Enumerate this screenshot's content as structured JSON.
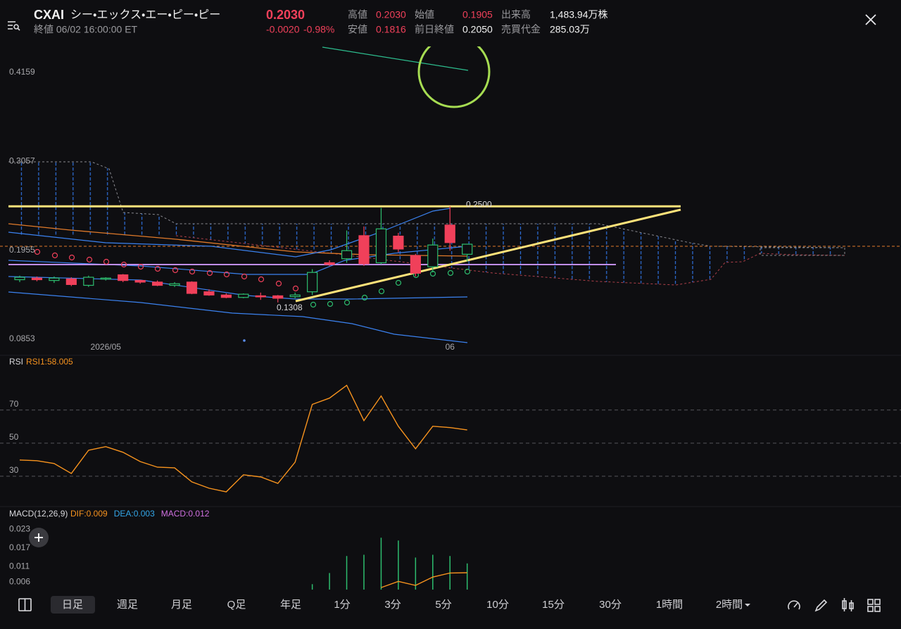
{
  "header": {
    "symbol": "CXAI",
    "name": "シー・エックス・エー・ピー・ピー",
    "price": "0.2030",
    "change": "-0.0020",
    "change_pct": "-0.98%",
    "status": "終値 06/02 16:00:00 ET",
    "stats": [
      {
        "label": "高値",
        "value": "0.2030"
      },
      {
        "label": "始値",
        "value": "0.1905"
      },
      {
        "label": "出来高",
        "value": "1,483.94万株"
      },
      {
        "label": "安値",
        "value": "0.1816"
      },
      {
        "label": "前日終値",
        "value": "0.2050"
      },
      {
        "label": "売買代金",
        "value": "285.03万"
      }
    ]
  },
  "chart_data": [
    {
      "type": "candlestick",
      "categories": [
        null,
        null,
        null,
        null,
        null,
        "2026/05",
        null,
        null,
        null,
        null,
        null,
        null,
        null,
        null,
        null,
        null,
        null,
        null,
        null,
        null,
        null,
        null,
        null,
        null,
        null,
        "06",
        null
      ],
      "open": [
        0.159,
        0.161,
        0.158,
        0.16,
        0.152,
        0.16,
        0.165,
        0.158,
        0.156,
        0.152,
        0.156,
        0.144,
        0.14,
        0.137,
        0.139,
        0.139,
        0.138,
        0.144,
        0.18,
        0.185,
        0.2136,
        0.18,
        0.213,
        0.189,
        0.175,
        0.2267,
        0.1905
      ],
      "high": [
        0.164,
        0.163,
        0.163,
        0.162,
        0.164,
        0.162,
        0.166,
        0.159,
        0.158,
        0.156,
        0.157,
        0.147,
        0.142,
        0.142,
        0.143,
        0.14,
        0.143,
        0.172,
        0.183,
        0.22,
        0.225,
        0.248,
        0.217,
        0.191,
        0.21,
        0.25,
        0.203
      ],
      "low": [
        0.156,
        0.157,
        0.155,
        0.151,
        0.15,
        0.158,
        0.156,
        0.154,
        0.151,
        0.15,
        0.141,
        0.139,
        0.136,
        0.136,
        0.134,
        0.1308,
        0.136,
        0.14,
        0.176,
        0.18,
        0.176,
        0.178,
        0.193,
        0.163,
        0.168,
        0.195,
        0.1816
      ],
      "close": [
        0.162,
        0.159,
        0.161,
        0.153,
        0.162,
        0.161,
        0.158,
        0.156,
        0.152,
        0.154,
        0.142,
        0.14,
        0.137,
        0.141,
        0.138,
        0.136,
        0.14,
        0.168,
        0.178,
        0.195,
        0.1787,
        0.222,
        0.197,
        0.167,
        0.202,
        0.205,
        0.203
      ],
      "up_color": "#2dbd6e",
      "down_color": "#f0405a",
      "ylim": [
        0.0853,
        0.4159
      ],
      "yticks": [
        0.4159,
        0.3057,
        0.1955,
        0.0853
      ],
      "annotations": [
        {
          "value": 0.25,
          "label": "0.2500",
          "color": "#ffe27a"
        },
        {
          "value": 0.1308,
          "label": "0.1308"
        }
      ]
    },
    {
      "type": "line",
      "title": "RSI",
      "legend": "RSI1:58.005",
      "color": "#f7931e",
      "values": [
        39.8,
        39.4,
        37.7,
        31.7,
        45.7,
        47.9,
        44.5,
        38.9,
        35.5,
        35.1,
        26.6,
        22.8,
        20.6,
        30.9,
        29.6,
        25.7,
        38.5,
        73.4,
        77.2,
        84.9,
        63.6,
        78.5,
        60.2,
        46.6,
        60.2,
        59.4,
        58.0
      ],
      "ylim": [
        10,
        92
      ],
      "yticks": [
        70,
        50,
        30
      ],
      "grid": true
    },
    {
      "type": "bar",
      "title": "MACD(12,26,9)",
      "legend": [
        {
          "label": "DIF:0.009",
          "color": "#f7931e"
        },
        {
          "label": "DEA:0.003",
          "color": "#33a6e8"
        },
        {
          "label": "MACD:0.012",
          "color": "#d070e0"
        }
      ],
      "series": [
        {
          "color": "#2dbd6e",
          "values": [
            null,
            null,
            null,
            null,
            null,
            null,
            null,
            null,
            null,
            null,
            null,
            null,
            null,
            null,
            null,
            null,
            null,
            0.0053,
            0.0089,
            0.0144,
            0.0148,
            0.0203,
            0.0194,
            0.0139,
            0.0148,
            0.0144,
            0.012
          ]
        },
        {
          "color": "#f7931e",
          "values": [
            null,
            null,
            null,
            null,
            null,
            null,
            null,
            null,
            null,
            null,
            null,
            null,
            null,
            null,
            null,
            null,
            null,
            null,
            null,
            null,
            null,
            0.0042,
            0.0062,
            0.0049,
            0.0076,
            0.0089,
            0.009
          ]
        }
      ],
      "ylim": [
        0.004,
        0.024
      ],
      "yticks": [
        0.023,
        0.017,
        0.011,
        0.006
      ]
    }
  ],
  "tabs": [
    "日足",
    "週足",
    "月足",
    "Q足",
    "年足",
    "1分",
    "3分",
    "5分",
    "10分",
    "15分",
    "30分",
    "1時間",
    "2時間"
  ]
}
